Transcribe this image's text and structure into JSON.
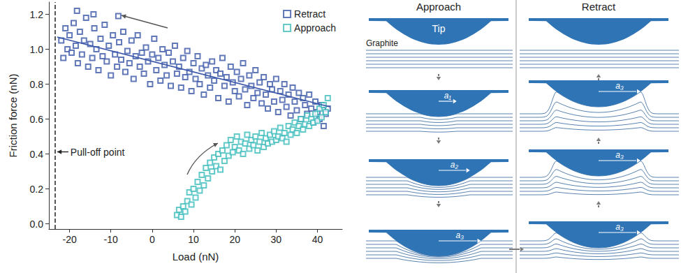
{
  "chart_data": {
    "type": "scatter",
    "x_label": "Load (nN)",
    "y_label": "Friction force (nN)",
    "xlim": [
      -25,
      46
    ],
    "xticks": [
      -20,
      -10,
      0,
      10,
      20,
      30,
      40
    ],
    "ylim": [
      -0.03,
      1.27
    ],
    "yticks": [
      {
        "value": 0,
        "label": "0.0"
      },
      0.2,
      0.4,
      0.6,
      0.8,
      {
        "value": 1,
        "label": "1.0"
      },
      1.2
    ],
    "grid": false,
    "legend": "upper right",
    "marker": "square_open",
    "series": [
      {
        "name": "Retract",
        "color": "#3a56a8",
        "x": [
          -22,
          -21.5,
          -21,
          -20.5,
          -20,
          -19.5,
          -19,
          -18.5,
          -18,
          -17.5,
          -17,
          -16.5,
          -16,
          -15.5,
          -15,
          -14.5,
          -14,
          -13.5,
          -13,
          -12.5,
          -12,
          -11.5,
          -11,
          -10.5,
          -10,
          -9.5,
          -9,
          -8.5,
          -8,
          -7.5,
          -7,
          -6.5,
          -6,
          -5.5,
          -5,
          -4.5,
          -4,
          -3.5,
          -3,
          -2.5,
          -2,
          -1.5,
          -1,
          -0.5,
          0,
          0.5,
          1,
          1.5,
          2,
          2.5,
          3,
          3.5,
          4,
          4.5,
          5,
          5.5,
          6,
          6.5,
          7,
          7.5,
          8,
          8.5,
          9,
          9.5,
          10,
          10.5,
          11,
          11.5,
          12,
          12.5,
          13,
          13.5,
          14,
          14.5,
          15,
          15.5,
          16,
          16.5,
          17,
          17.5,
          18,
          18.5,
          19,
          19.5,
          20,
          20.5,
          21,
          21.5,
          22,
          22.5,
          23,
          23.5,
          24,
          24.5,
          25,
          25.5,
          26,
          26.5,
          27,
          27.5,
          28,
          28.5,
          29,
          29.5,
          30,
          30.5,
          31,
          31.5,
          32,
          32.5,
          33,
          33.5,
          34,
          34.5,
          35,
          35.5,
          36,
          36.5,
          37,
          37.5,
          38,
          38.5,
          39,
          39.5,
          40,
          40.5,
          41,
          41.5,
          42,
          42.5,
          -18.2,
          -14.2,
          -8.2
        ],
        "values": [
          1.05,
          0.95,
          1.12,
          1.0,
          1.08,
          0.98,
          1.15,
          1.02,
          0.92,
          1.1,
          0.97,
          1.05,
          1.18,
          0.9,
          1.03,
          0.95,
          1.12,
          1.0,
          0.88,
          1.06,
          0.96,
          1.14,
          0.93,
          1.02,
          0.85,
          1.08,
          0.97,
          0.9,
          1.04,
          0.94,
          1.1,
          0.87,
          0.99,
          0.92,
          1.05,
          0.83,
          0.96,
          1.08,
          0.9,
          0.98,
          0.86,
          1.01,
          0.93,
          0.8,
          0.97,
          1.06,
          0.88,
          0.95,
          0.82,
          1.0,
          0.91,
          0.85,
          0.98,
          0.79,
          0.93,
          1.02,
          0.86,
          0.9,
          0.78,
          0.95,
          0.84,
          0.99,
          0.87,
          0.76,
          0.92,
          0.83,
          0.96,
          0.8,
          0.89,
          0.74,
          0.91,
          0.85,
          0.78,
          0.93,
          0.82,
          0.88,
          0.72,
          0.86,
          0.95,
          0.79,
          0.84,
          0.7,
          0.9,
          0.81,
          0.76,
          0.87,
          0.73,
          0.83,
          0.92,
          0.77,
          0.68,
          0.85,
          0.79,
          0.72,
          0.88,
          0.75,
          0.81,
          0.69,
          0.84,
          0.74,
          0.66,
          0.8,
          0.77,
          0.7,
          0.83,
          0.64,
          0.76,
          0.71,
          0.8,
          0.67,
          0.74,
          0.62,
          0.78,
          0.7,
          0.65,
          0.75,
          0.6,
          0.72,
          0.68,
          0.63,
          0.74,
          0.66,
          0.58,
          0.7,
          0.64,
          0.6,
          0.68,
          0.56,
          0.63,
          0.66,
          1.22,
          1.2,
          1.19
        ],
        "fit": {
          "x": [
            -23,
            43
          ],
          "y": [
            1.07,
            0.67
          ]
        }
      },
      {
        "name": "Approach",
        "color": "#3cbcbc",
        "x": [
          6,
          6.5,
          7,
          7.5,
          8,
          8.5,
          9,
          9.5,
          10,
          10.5,
          11,
          11.5,
          12,
          12.5,
          13,
          13.5,
          14,
          14.5,
          15,
          15.5,
          16,
          16.5,
          17,
          17.5,
          18,
          18.5,
          19,
          19.5,
          20,
          20.5,
          21,
          21.5,
          22,
          22.5,
          23,
          23.5,
          24,
          24.5,
          25,
          25.5,
          26,
          26.5,
          27,
          27.5,
          28,
          28.5,
          29,
          29.5,
          30,
          30.5,
          31,
          31.5,
          32,
          32.5,
          33,
          33.5,
          34,
          34.5,
          35,
          35.5,
          36,
          36.5,
          37,
          37.5,
          38,
          38.5,
          39,
          39.5,
          40,
          40.5,
          41,
          41.5,
          42,
          42.5
        ],
        "values": [
          0.05,
          0.08,
          0.04,
          0.1,
          0.07,
          0.13,
          0.18,
          0.11,
          0.2,
          0.15,
          0.24,
          0.19,
          0.28,
          0.22,
          0.32,
          0.26,
          0.35,
          0.3,
          0.38,
          0.33,
          0.4,
          0.31,
          0.42,
          0.36,
          0.45,
          0.39,
          0.48,
          0.41,
          0.44,
          0.5,
          0.42,
          0.47,
          0.4,
          0.46,
          0.51,
          0.43,
          0.48,
          0.45,
          0.5,
          0.42,
          0.47,
          0.52,
          0.44,
          0.49,
          0.46,
          0.51,
          0.47,
          0.53,
          0.48,
          0.5,
          0.55,
          0.49,
          0.52,
          0.47,
          0.56,
          0.51,
          0.54,
          0.58,
          0.52,
          0.56,
          0.6,
          0.54,
          0.57,
          0.62,
          0.56,
          0.6,
          0.58,
          0.63,
          0.59,
          0.66,
          0.61,
          0.68,
          0.64,
          0.72
        ]
      }
    ],
    "annotations": [
      {
        "text": "Pull-off point",
        "x": -23.5,
        "line_style": "dashed"
      }
    ]
  },
  "diagram": {
    "columns": [
      {
        "title": "Approach",
        "tip_label": "Tip",
        "layers_label": "Graphite",
        "radius_labels": [
          "a₁",
          "a₂",
          "a₃"
        ]
      },
      {
        "title": "Retract",
        "radius_labels": [
          "a₃",
          "a₃",
          "a₃"
        ]
      }
    ]
  }
}
